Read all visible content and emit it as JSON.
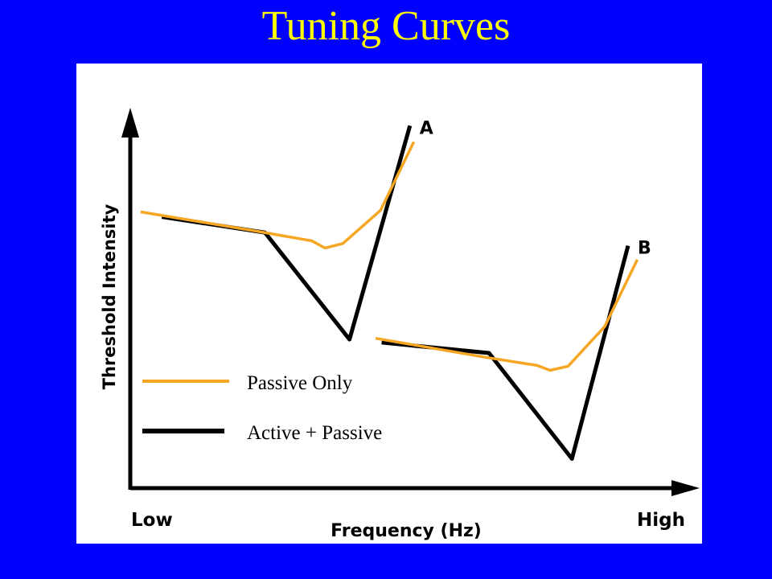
{
  "slide": {
    "title": "Tuning Curves"
  },
  "colors": {
    "background": "#0000ff",
    "title": "#ffff00",
    "passive": "#f5a623",
    "active": "#000000"
  },
  "chart_data": {
    "type": "line",
    "title": "Tuning Curves",
    "xlabel": "Frequency (Hz)",
    "ylabel": "Threshold Intensity",
    "x_tick_labels": [
      "Low",
      "High"
    ],
    "xlim": [
      0,
      100
    ],
    "ylim": [
      0,
      100
    ],
    "grid": false,
    "legend_placement": "bottom-left",
    "legend": [
      "Passive Only",
      "Active + Passive"
    ],
    "curves": [
      {
        "label": "A",
        "series": [
          {
            "name": "Active + Passive",
            "color": "#000000",
            "x": [
              5.8,
              24.7,
              40.2,
              51.3
            ],
            "y": [
              72.1,
              67.9,
              39.5,
              96.3
            ]
          },
          {
            "name": "Passive Only",
            "color": "#f5a623",
            "x": [
              1.9,
              23.1,
              33.3,
              35.7,
              39.0,
              45.9,
              52.0
            ],
            "y": [
              73.4,
              68.3,
              65.7,
              63.8,
              65.0,
              73.8,
              92.0
            ]
          }
        ]
      },
      {
        "label": "B",
        "series": [
          {
            "name": "Active + Passive",
            "color": "#000000",
            "x": [
              46.1,
              65.8,
              81.0,
              91.3
            ],
            "y": [
              38.7,
              35.9,
              7.8,
              64.4
            ]
          },
          {
            "name": "Passive Only",
            "color": "#f5a623",
            "x": [
              45.0,
              64.6,
              74.6,
              77.0,
              80.3,
              87.0,
              93.0
            ],
            "y": [
              39.8,
              34.9,
              32.6,
              31.3,
              32.4,
              42.9,
              60.7
            ]
          }
        ]
      }
    ]
  }
}
